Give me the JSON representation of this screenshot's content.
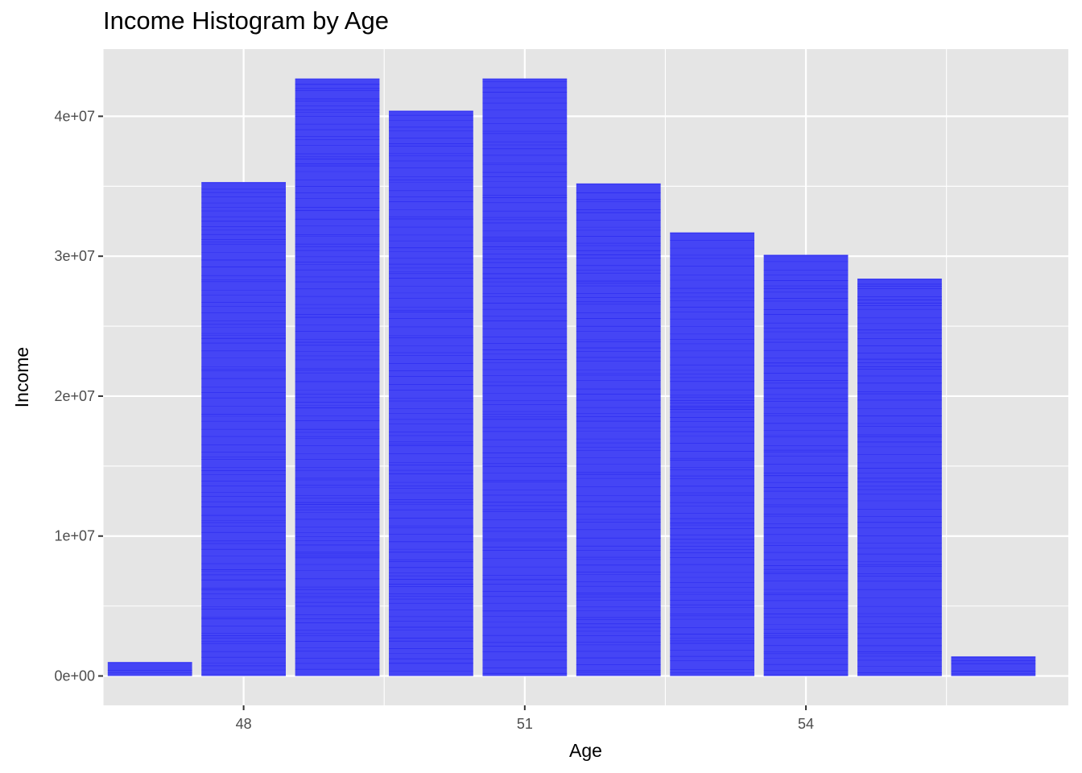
{
  "chart_data": {
    "type": "bar",
    "title": "Income Histogram by Age",
    "xlabel": "Age",
    "ylabel": "Income",
    "x": [
      47,
      48,
      49,
      50,
      51,
      52,
      53,
      54,
      55,
      56
    ],
    "values": [
      1000000,
      35300000,
      42700000,
      40400000,
      42700000,
      35200000,
      31700000,
      30100000,
      28400000,
      1400000
    ],
    "xlim": [
      46.5,
      56.8
    ],
    "ylim": [
      -2100000,
      44800000
    ],
    "x_ticks": [
      48,
      51,
      54
    ],
    "x_tick_labels": [
      "48",
      "51",
      "54"
    ],
    "y_ticks": [
      0,
      10000000,
      20000000,
      30000000,
      40000000
    ],
    "y_tick_labels": [
      "0e+00",
      "1e+07",
      "2e+07",
      "3e+07",
      "4e+07"
    ],
    "bar_color": "#4545f5",
    "stripe_color": "#2020ee",
    "panel_background": "#e5e5e5",
    "grid_color": "#ffffff",
    "grid": true,
    "legend": "none"
  }
}
